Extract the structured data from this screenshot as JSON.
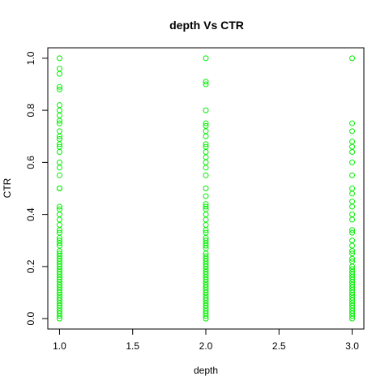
{
  "chart_data": {
    "type": "scatter",
    "title": "depth Vs CTR",
    "xlabel": "depth",
    "ylabel": "CTR",
    "xlim": [
      0.92,
      3.08
    ],
    "ylim": [
      -0.04,
      1.04
    ],
    "x_ticks": [
      1.0,
      1.5,
      2.0,
      2.5,
      3.0
    ],
    "x_tick_labels": [
      "1.0",
      "1.5",
      "2.0",
      "2.5",
      "3.0"
    ],
    "y_ticks": [
      0.0,
      0.2,
      0.4,
      0.6,
      0.8,
      1.0
    ],
    "y_tick_labels": [
      "0.0",
      "0.2",
      "0.4",
      "0.6",
      "0.8",
      "1.0"
    ],
    "grid": false,
    "legend": "none",
    "marker_color": "#00ee00",
    "marker": "open-circle",
    "series": [
      {
        "points": [
          [
            1,
            1.0
          ],
          [
            1,
            0.96
          ],
          [
            1,
            0.94
          ],
          [
            1,
            0.89
          ],
          [
            1,
            0.88
          ],
          [
            1,
            0.82
          ],
          [
            1,
            0.8
          ],
          [
            1,
            0.78
          ],
          [
            1,
            0.76
          ],
          [
            1,
            0.75
          ],
          [
            1,
            0.72
          ],
          [
            1,
            0.7
          ],
          [
            1,
            0.69
          ],
          [
            1,
            0.67
          ],
          [
            1,
            0.66
          ],
          [
            1,
            0.64
          ],
          [
            1,
            0.6
          ],
          [
            1,
            0.58
          ],
          [
            1,
            0.55
          ],
          [
            1,
            0.5
          ],
          [
            1,
            0.5
          ],
          [
            1,
            0.43
          ],
          [
            1,
            0.42
          ],
          [
            1,
            0.4
          ],
          [
            1,
            0.38
          ],
          [
            1,
            0.36
          ],
          [
            1,
            0.34
          ],
          [
            1,
            0.33
          ],
          [
            1,
            0.31
          ],
          [
            1,
            0.3
          ],
          [
            1,
            0.29
          ],
          [
            1,
            0.28
          ],
          [
            1,
            0.26
          ],
          [
            1,
            0.25
          ],
          [
            1,
            0.24
          ],
          [
            1,
            0.23
          ],
          [
            1,
            0.22
          ],
          [
            1,
            0.21
          ],
          [
            1,
            0.2
          ],
          [
            1,
            0.19
          ],
          [
            1,
            0.18
          ],
          [
            1,
            0.17
          ],
          [
            1,
            0.16
          ],
          [
            1,
            0.15
          ],
          [
            1,
            0.14
          ],
          [
            1,
            0.13
          ],
          [
            1,
            0.12
          ],
          [
            1,
            0.11
          ],
          [
            1,
            0.1
          ],
          [
            1,
            0.09
          ],
          [
            1,
            0.08
          ],
          [
            1,
            0.07
          ],
          [
            1,
            0.06
          ],
          [
            1,
            0.05
          ],
          [
            1,
            0.04
          ],
          [
            1,
            0.03
          ],
          [
            1,
            0.02
          ],
          [
            1,
            0.01
          ],
          [
            1,
            0.0
          ],
          [
            2,
            1.0
          ],
          [
            2,
            0.91
          ],
          [
            2,
            0.9
          ],
          [
            2,
            0.8
          ],
          [
            2,
            0.75
          ],
          [
            2,
            0.74
          ],
          [
            2,
            0.72
          ],
          [
            2,
            0.7
          ],
          [
            2,
            0.67
          ],
          [
            2,
            0.66
          ],
          [
            2,
            0.64
          ],
          [
            2,
            0.62
          ],
          [
            2,
            0.6
          ],
          [
            2,
            0.58
          ],
          [
            2,
            0.55
          ],
          [
            2,
            0.5
          ],
          [
            2,
            0.47
          ],
          [
            2,
            0.44
          ],
          [
            2,
            0.43
          ],
          [
            2,
            0.42
          ],
          [
            2,
            0.4
          ],
          [
            2,
            0.38
          ],
          [
            2,
            0.36
          ],
          [
            2,
            0.34
          ],
          [
            2,
            0.33
          ],
          [
            2,
            0.31
          ],
          [
            2,
            0.3
          ],
          [
            2,
            0.29
          ],
          [
            2,
            0.28
          ],
          [
            2,
            0.27
          ],
          [
            2,
            0.25
          ],
          [
            2,
            0.24
          ],
          [
            2,
            0.23
          ],
          [
            2,
            0.22
          ],
          [
            2,
            0.21
          ],
          [
            2,
            0.2
          ],
          [
            2,
            0.19
          ],
          [
            2,
            0.18
          ],
          [
            2,
            0.17
          ],
          [
            2,
            0.16
          ],
          [
            2,
            0.15
          ],
          [
            2,
            0.14
          ],
          [
            2,
            0.13
          ],
          [
            2,
            0.12
          ],
          [
            2,
            0.11
          ],
          [
            2,
            0.1
          ],
          [
            2,
            0.09
          ],
          [
            2,
            0.08
          ],
          [
            2,
            0.07
          ],
          [
            2,
            0.06
          ],
          [
            2,
            0.05
          ],
          [
            2,
            0.04
          ],
          [
            2,
            0.03
          ],
          [
            2,
            0.02
          ],
          [
            2,
            0.01
          ],
          [
            2,
            0.0
          ],
          [
            3,
            1.0
          ],
          [
            3,
            0.75
          ],
          [
            3,
            0.72
          ],
          [
            3,
            0.68
          ],
          [
            3,
            0.66
          ],
          [
            3,
            0.64
          ],
          [
            3,
            0.6
          ],
          [
            3,
            0.55
          ],
          [
            3,
            0.5
          ],
          [
            3,
            0.48
          ],
          [
            3,
            0.45
          ],
          [
            3,
            0.43
          ],
          [
            3,
            0.4
          ],
          [
            3,
            0.38
          ],
          [
            3,
            0.34
          ],
          [
            3,
            0.33
          ],
          [
            3,
            0.3
          ],
          [
            3,
            0.28
          ],
          [
            3,
            0.26
          ],
          [
            3,
            0.25
          ],
          [
            3,
            0.23
          ],
          [
            3,
            0.22
          ],
          [
            3,
            0.2
          ],
          [
            3,
            0.19
          ],
          [
            3,
            0.18
          ],
          [
            3,
            0.17
          ],
          [
            3,
            0.16
          ],
          [
            3,
            0.15
          ],
          [
            3,
            0.14
          ],
          [
            3,
            0.13
          ],
          [
            3,
            0.12
          ],
          [
            3,
            0.11
          ],
          [
            3,
            0.1
          ],
          [
            3,
            0.09
          ],
          [
            3,
            0.08
          ],
          [
            3,
            0.07
          ],
          [
            3,
            0.06
          ],
          [
            3,
            0.05
          ],
          [
            3,
            0.04
          ],
          [
            3,
            0.03
          ],
          [
            3,
            0.02
          ],
          [
            3,
            0.01
          ],
          [
            3,
            0.0
          ]
        ]
      }
    ]
  }
}
